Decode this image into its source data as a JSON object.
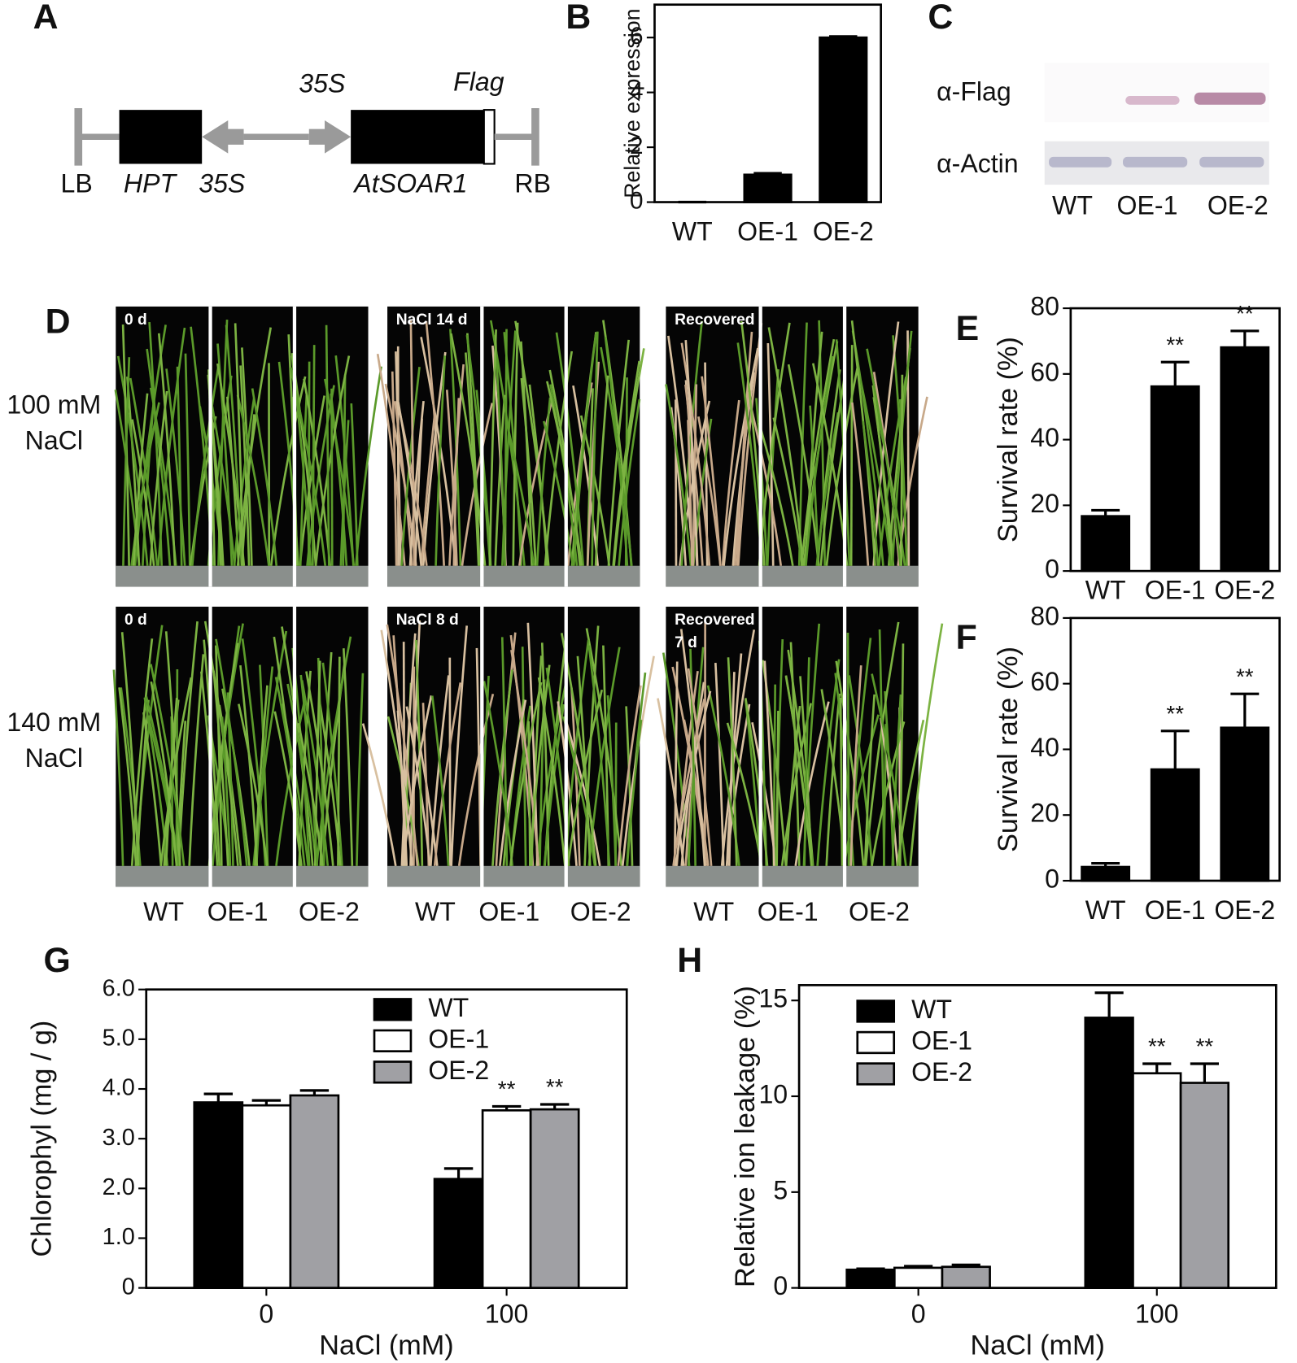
{
  "panel_a": {
    "label": "A",
    "promoter_top": "35S",
    "tag": "Flag",
    "left_border": "LB",
    "marker_gene": "HPT",
    "promoter_bottom": "35S",
    "gene": "AtSOAR1",
    "right_border": "RB"
  },
  "panel_c": {
    "label": "C",
    "antibodies": [
      "α-Flag",
      "α-Actin"
    ],
    "lanes": [
      "WT",
      "OE-1",
      "OE-2"
    ]
  },
  "panel_d": {
    "label": "D",
    "rows": [
      [
        "100 mM",
        "NaCl"
      ],
      [
        "140 mM",
        "NaCl"
      ]
    ],
    "photo_labels": [
      [
        "0 d"
      ],
      [
        "NaCl 14 d"
      ],
      [
        "Recovered"
      ],
      [
        "0 d"
      ],
      [
        "NaCl 8 d"
      ],
      [
        "Recovered",
        "7 d"
      ]
    ],
    "lanes": [
      "WT",
      "OE-1",
      "OE-2"
    ]
  },
  "chart_data": [
    {
      "type": "bar",
      "panel": "B",
      "ylabel": "Relative expression",
      "categories": [
        "WT",
        "OE-1",
        "OE-2"
      ],
      "values": [
        0,
        1.0,
        6.0
      ],
      "errors": [
        0,
        0.05,
        0.04
      ],
      "color": "#000000",
      "ylim": [
        0,
        7.2
      ],
      "yticks": [
        0,
        2,
        4,
        6
      ]
    },
    {
      "type": "bar",
      "panel": "E",
      "ylabel": "Survival rate (%)",
      "categories": [
        "WT",
        "OE-1",
        "OE-2"
      ],
      "values": [
        16.7,
        56.2,
        68.1
      ],
      "errors": [
        1.8,
        7.4,
        5.0
      ],
      "annotations": [
        null,
        "**",
        "**"
      ],
      "color": "#000000",
      "ylim": [
        0,
        80
      ],
      "yticks": [
        0,
        20,
        40,
        60,
        80
      ]
    },
    {
      "type": "bar",
      "panel": "F",
      "ylabel": "Survival rate (%)",
      "categories": [
        "WT",
        "OE-1",
        "OE-2"
      ],
      "values": [
        4.2,
        33.9,
        46.6
      ],
      "errors": [
        1.1,
        11.7,
        10.3
      ],
      "annotations": [
        null,
        "**",
        "**"
      ],
      "color": "#000000",
      "ylim": [
        0,
        80
      ],
      "yticks": [
        0,
        20,
        40,
        60,
        80
      ]
    },
    {
      "type": "grouped_bar",
      "panel": "G",
      "xlabel": "NaCl (mM)",
      "ylabel": "Chlorophyl (mg / g)",
      "categories": [
        "0",
        "100"
      ],
      "series": [
        {
          "name": "WT",
          "color": "#000000",
          "values": [
            3.73,
            2.19
          ],
          "errors": [
            0.17,
            0.21
          ]
        },
        {
          "name": "OE-1",
          "color": "#ffffff",
          "values": [
            3.67,
            3.57
          ],
          "errors": [
            0.1,
            0.08
          ],
          "annotations": [
            null,
            "**"
          ]
        },
        {
          "name": "OE-2",
          "color": "#a0a0a4",
          "values": [
            3.87,
            3.59
          ],
          "errors": [
            0.1,
            0.1
          ],
          "annotations": [
            null,
            "**"
          ]
        }
      ],
      "ylim": [
        0,
        6
      ],
      "yticks": [
        0,
        {
          "value": 1,
          "label": "1.0"
        },
        {
          "value": 2,
          "label": "2.0"
        },
        {
          "value": 3,
          "label": "3.0"
        },
        {
          "value": 4,
          "label": "4.0"
        },
        {
          "value": 5,
          "label": "5.0"
        },
        {
          "value": 6,
          "label": "6.0"
        }
      ],
      "legend": "top-center"
    },
    {
      "type": "grouped_bar",
      "panel": "H",
      "xlabel": "NaCl (mM)",
      "ylabel": "Relative ion leakage (%)",
      "categories": [
        "0",
        "100"
      ],
      "series": [
        {
          "name": "WT",
          "color": "#000000",
          "values": [
            0.95,
            14.1
          ],
          "errors": [
            0.05,
            1.3
          ]
        },
        {
          "name": "OE-1",
          "color": "#ffffff",
          "values": [
            1.05,
            11.2
          ],
          "errors": [
            0.08,
            0.5
          ],
          "annotations": [
            null,
            "**"
          ]
        },
        {
          "name": "OE-2",
          "color": "#a0a0a4",
          "values": [
            1.1,
            10.7
          ],
          "errors": [
            0.1,
            1.0
          ],
          "annotations": [
            null,
            "**"
          ]
        }
      ],
      "ylim": [
        0,
        15.8
      ],
      "yticks": [
        0,
        5,
        10,
        15
      ],
      "legend": "top-left"
    }
  ]
}
